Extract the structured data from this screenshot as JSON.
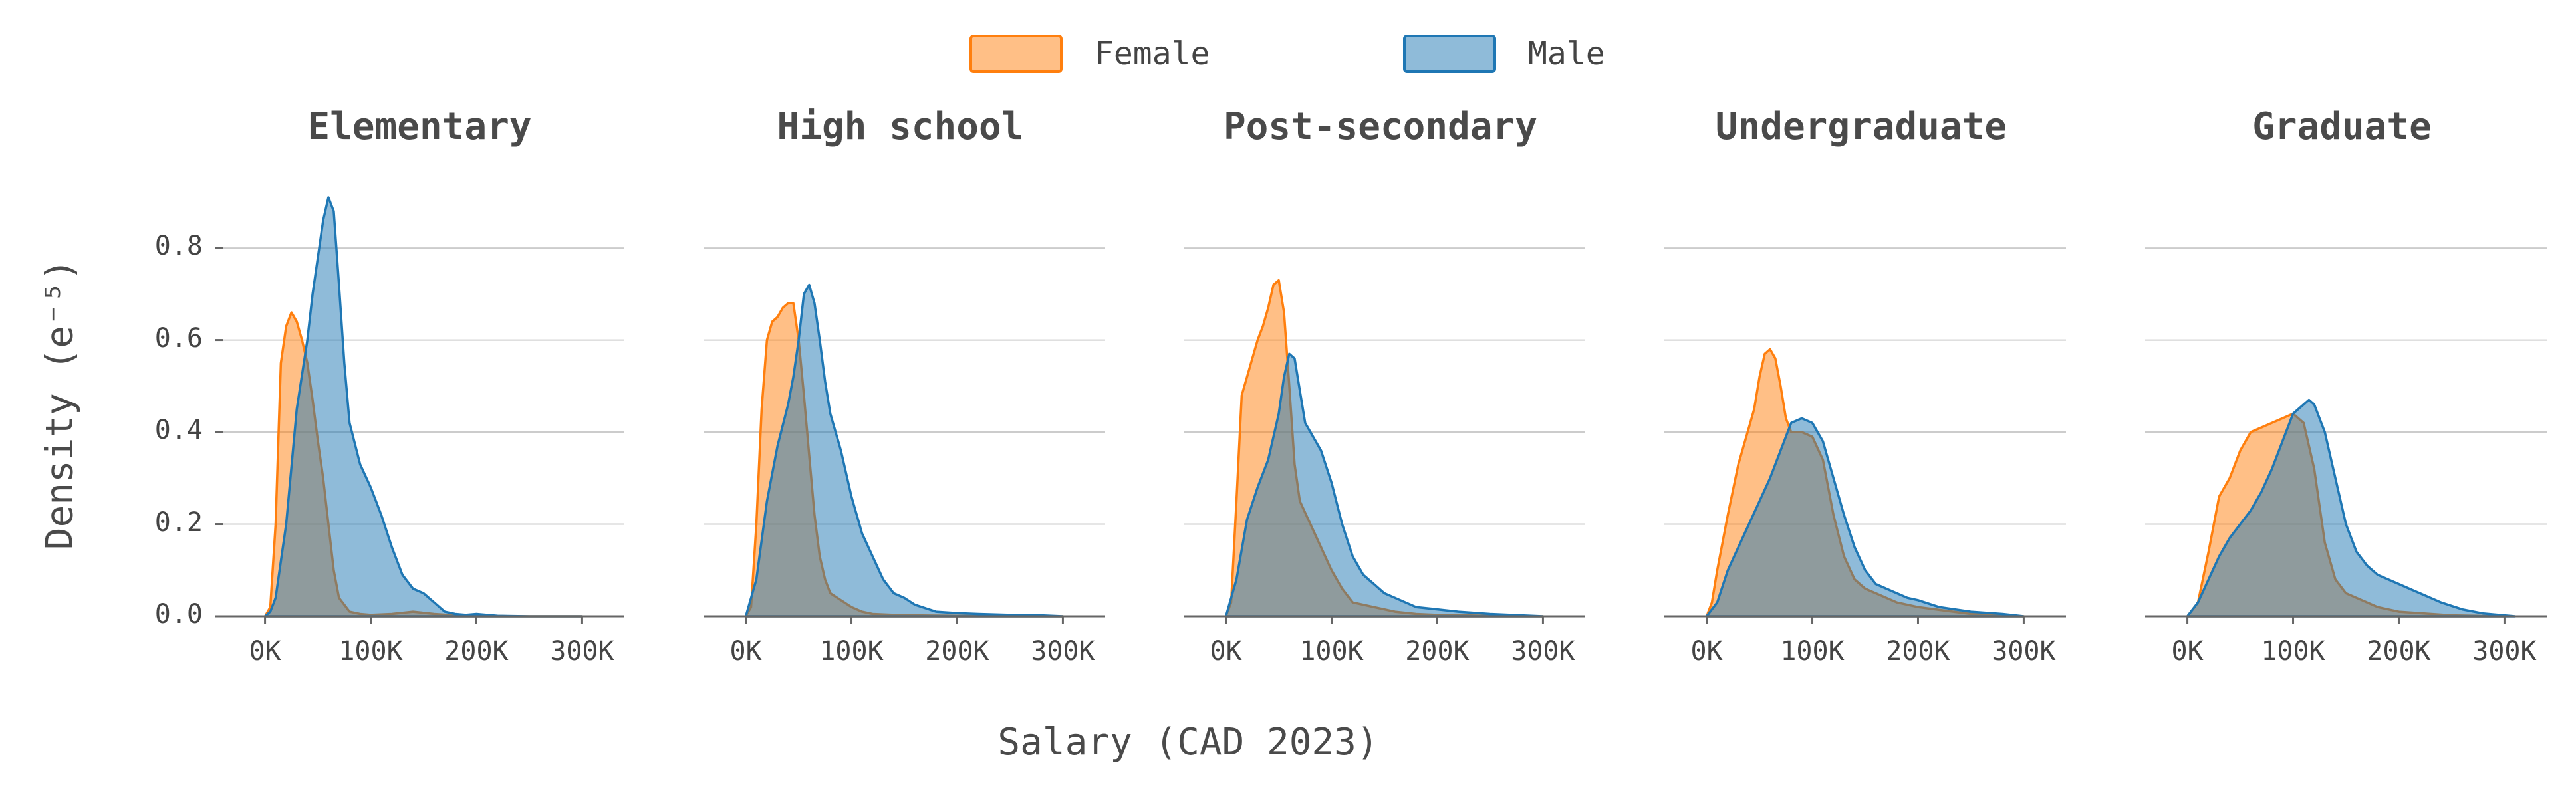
{
  "colors": {
    "female": "#ff7f0e",
    "male": "#1f77b4",
    "overlap": "#8b9a9a",
    "grid": "#cccccc",
    "axis": "#666666"
  },
  "legend": [
    {
      "label": "Female",
      "color": "#ff7f0e"
    },
    {
      "label": "Male",
      "color": "#1f77b4"
    }
  ],
  "chart_data": {
    "type": "area",
    "xlabel": "Salary (CAD 2023)",
    "ylabel": "Density (e⁻⁵)",
    "xlim": [
      -40000,
      340000
    ],
    "ylim": [
      0,
      0.92
    ],
    "x_ticks": [
      "0K",
      "100K",
      "200K",
      "300K"
    ],
    "x_tick_values": [
      0,
      100000,
      200000,
      300000
    ],
    "y_ticks": [
      "0.0",
      "0.2",
      "0.4",
      "0.6",
      "0.8"
    ],
    "y_tick_values": [
      0,
      0.2,
      0.4,
      0.6,
      0.8
    ],
    "grid": "horizontal",
    "legend_position": "top-center",
    "panels": [
      {
        "title": "Elementary",
        "series": [
          {
            "name": "Female",
            "x": [
              0,
              5000,
              10000,
              15000,
              20000,
              25000,
              30000,
              35000,
              40000,
              45000,
              50000,
              55000,
              60000,
              65000,
              70000,
              80000,
              90000,
              100000,
              120000,
              140000,
              160000,
              180000,
              200000,
              250000,
              300000
            ],
            "y": [
              0,
              0.02,
              0.2,
              0.55,
              0.63,
              0.66,
              0.64,
              0.6,
              0.55,
              0.47,
              0.38,
              0.3,
              0.2,
              0.1,
              0.04,
              0.01,
              0.005,
              0.003,
              0.005,
              0.01,
              0.005,
              0.002,
              0.001,
              0,
              0
            ]
          },
          {
            "name": "Male",
            "x": [
              0,
              5000,
              10000,
              20000,
              30000,
              40000,
              45000,
              50000,
              55000,
              60000,
              65000,
              70000,
              75000,
              80000,
              90000,
              100000,
              110000,
              120000,
              130000,
              140000,
              150000,
              160000,
              170000,
              180000,
              190000,
              200000,
              220000,
              250000,
              300000
            ],
            "y": [
              0,
              0.01,
              0.04,
              0.2,
              0.45,
              0.6,
              0.7,
              0.78,
              0.86,
              0.91,
              0.88,
              0.72,
              0.55,
              0.42,
              0.33,
              0.28,
              0.22,
              0.15,
              0.09,
              0.06,
              0.05,
              0.03,
              0.01,
              0.005,
              0.003,
              0.005,
              0.001,
              0,
              0
            ]
          }
        ]
      },
      {
        "title": "High school",
        "series": [
          {
            "name": "Female",
            "x": [
              0,
              5000,
              10000,
              15000,
              20000,
              25000,
              30000,
              35000,
              40000,
              45000,
              50000,
              55000,
              60000,
              65000,
              70000,
              75000,
              80000,
              90000,
              100000,
              110000,
              120000,
              140000,
              160000,
              200000,
              250000,
              300000
            ],
            "y": [
              0,
              0.02,
              0.2,
              0.45,
              0.6,
              0.64,
              0.65,
              0.67,
              0.68,
              0.68,
              0.6,
              0.48,
              0.35,
              0.22,
              0.13,
              0.08,
              0.05,
              0.035,
              0.02,
              0.01,
              0.005,
              0.003,
              0.002,
              0.001,
              0,
              0
            ]
          },
          {
            "name": "Male",
            "x": [
              0,
              10000,
              20000,
              30000,
              40000,
              45000,
              50000,
              55000,
              60000,
              65000,
              70000,
              75000,
              80000,
              90000,
              100000,
              110000,
              120000,
              130000,
              140000,
              150000,
              160000,
              180000,
              200000,
              220000,
              250000,
              280000,
              300000
            ],
            "y": [
              0,
              0.08,
              0.25,
              0.37,
              0.46,
              0.52,
              0.6,
              0.7,
              0.72,
              0.68,
              0.6,
              0.51,
              0.44,
              0.36,
              0.26,
              0.18,
              0.13,
              0.08,
              0.05,
              0.04,
              0.025,
              0.01,
              0.007,
              0.005,
              0.003,
              0.002,
              0
            ]
          }
        ]
      },
      {
        "title": "Post-secondary",
        "series": [
          {
            "name": "Female",
            "x": [
              0,
              5000,
              10000,
              15000,
              20000,
              25000,
              30000,
              35000,
              40000,
              45000,
              50000,
              55000,
              60000,
              65000,
              70000,
              80000,
              90000,
              100000,
              110000,
              120000,
              140000,
              160000,
              180000,
              200000,
              250000,
              300000
            ],
            "y": [
              0,
              0.03,
              0.25,
              0.48,
              0.52,
              0.56,
              0.6,
              0.63,
              0.67,
              0.72,
              0.73,
              0.66,
              0.5,
              0.33,
              0.25,
              0.2,
              0.15,
              0.1,
              0.06,
              0.03,
              0.02,
              0.01,
              0.005,
              0.003,
              0.001,
              0
            ]
          },
          {
            "name": "Male",
            "x": [
              0,
              10000,
              20000,
              30000,
              40000,
              50000,
              55000,
              60000,
              65000,
              70000,
              75000,
              80000,
              90000,
              100000,
              110000,
              120000,
              130000,
              140000,
              150000,
              160000,
              180000,
              200000,
              220000,
              250000,
              300000
            ],
            "y": [
              0,
              0.08,
              0.21,
              0.28,
              0.34,
              0.44,
              0.52,
              0.57,
              0.56,
              0.49,
              0.42,
              0.4,
              0.36,
              0.29,
              0.2,
              0.13,
              0.09,
              0.07,
              0.05,
              0.04,
              0.02,
              0.015,
              0.01,
              0.005,
              0
            ]
          }
        ]
      },
      {
        "title": "Undergraduate",
        "series": [
          {
            "name": "Female",
            "x": [
              0,
              5000,
              10000,
              20000,
              30000,
              40000,
              45000,
              50000,
              55000,
              60000,
              65000,
              70000,
              75000,
              80000,
              85000,
              90000,
              100000,
              110000,
              120000,
              130000,
              140000,
              150000,
              160000,
              180000,
              200000,
              250000,
              300000
            ],
            "y": [
              0,
              0.03,
              0.1,
              0.22,
              0.33,
              0.41,
              0.45,
              0.52,
              0.57,
              0.58,
              0.56,
              0.5,
              0.43,
              0.4,
              0.4,
              0.4,
              0.39,
              0.34,
              0.22,
              0.13,
              0.08,
              0.06,
              0.05,
              0.03,
              0.02,
              0.005,
              0
            ]
          },
          {
            "name": "Male",
            "x": [
              0,
              10000,
              20000,
              30000,
              40000,
              50000,
              60000,
              70000,
              80000,
              90000,
              100000,
              110000,
              120000,
              130000,
              140000,
              150000,
              160000,
              170000,
              180000,
              190000,
              200000,
              220000,
              250000,
              280000,
              300000
            ],
            "y": [
              0,
              0.03,
              0.1,
              0.15,
              0.2,
              0.25,
              0.3,
              0.36,
              0.42,
              0.43,
              0.42,
              0.38,
              0.3,
              0.22,
              0.15,
              0.1,
              0.07,
              0.06,
              0.05,
              0.04,
              0.035,
              0.02,
              0.01,
              0.005,
              0
            ]
          }
        ]
      },
      {
        "title": "Graduate",
        "series": [
          {
            "name": "Female",
            "x": [
              0,
              10000,
              20000,
              30000,
              40000,
              50000,
              60000,
              70000,
              80000,
              90000,
              100000,
              110000,
              120000,
              130000,
              140000,
              150000,
              160000,
              180000,
              200000,
              250000,
              300000
            ],
            "y": [
              0,
              0.03,
              0.14,
              0.26,
              0.3,
              0.36,
              0.4,
              0.41,
              0.42,
              0.43,
              0.44,
              0.42,
              0.32,
              0.16,
              0.08,
              0.05,
              0.04,
              0.02,
              0.01,
              0.002,
              0
            ]
          },
          {
            "name": "Male",
            "x": [
              0,
              10000,
              20000,
              30000,
              40000,
              50000,
              60000,
              70000,
              80000,
              90000,
              100000,
              110000,
              115000,
              120000,
              130000,
              140000,
              150000,
              160000,
              170000,
              180000,
              190000,
              200000,
              210000,
              220000,
              240000,
              260000,
              280000,
              300000,
              310000
            ],
            "y": [
              0,
              0.03,
              0.08,
              0.13,
              0.17,
              0.2,
              0.23,
              0.27,
              0.32,
              0.38,
              0.44,
              0.46,
              0.47,
              0.46,
              0.4,
              0.3,
              0.2,
              0.14,
              0.11,
              0.09,
              0.08,
              0.07,
              0.06,
              0.05,
              0.03,
              0.015,
              0.006,
              0.002,
              0
            ]
          }
        ]
      }
    ]
  }
}
